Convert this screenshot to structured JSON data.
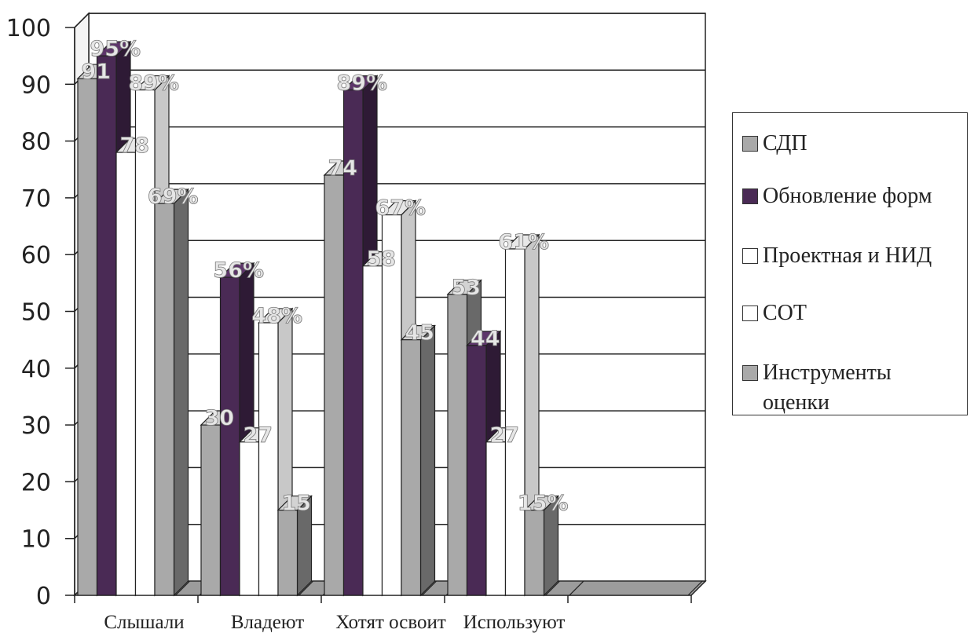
{
  "chart_data": {
    "type": "bar",
    "categories": [
      "Слышали",
      "Владеют",
      "Хотят освоит",
      "Используют"
    ],
    "series": [
      {
        "name": "СДП",
        "values": [
          91,
          30,
          74,
          53
        ],
        "labels": [
          "91",
          "30",
          "74",
          "53"
        ],
        "color": "#a9a9a9"
      },
      {
        "name": "Обновление форм",
        "values": [
          95,
          56,
          89,
          44
        ],
        "labels": [
          "95%",
          "56%",
          "89%",
          "44"
        ],
        "color": "#4a2a55"
      },
      {
        "name": "Проектная и НИД",
        "values": [
          78,
          27,
          58,
          27
        ],
        "labels": [
          "78",
          "27",
          "58",
          "27"
        ],
        "color": "#ffffff"
      },
      {
        "name": "СОТ",
        "values": [
          89,
          48,
          67,
          61
        ],
        "labels": [
          "89%",
          "48%",
          "67%",
          "61%"
        ],
        "color": "#ffffff"
      },
      {
        "name": "Инструменты оценки",
        "values": [
          69,
          15,
          45,
          15
        ],
        "labels": [
          "69%",
          "15",
          "45",
          "15%"
        ],
        "color": "#a9a9a9"
      }
    ],
    "ylim": [
      0,
      100
    ],
    "yticks": [
      "0",
      "10",
      "20",
      "30",
      "40",
      "50",
      "60",
      "70",
      "80",
      "90",
      "100"
    ],
    "grid": true,
    "legend_position": "right",
    "style": "3d-clustered-column"
  }
}
